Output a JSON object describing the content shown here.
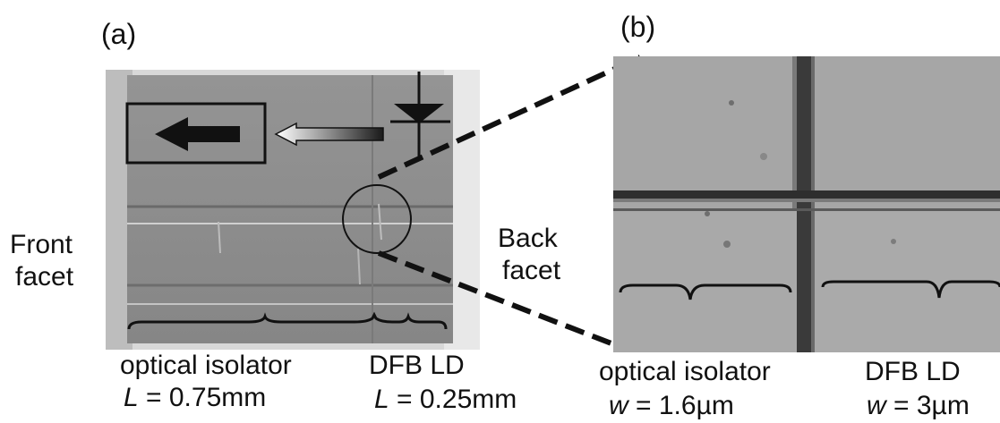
{
  "panel_a": {
    "tag": "(a)",
    "front_label_1": "Front",
    "front_label_2": "facet",
    "back_label_1": "Back",
    "back_label_2": "facet",
    "isolator_label": "optical isolator",
    "isolator_param_symbol": "L",
    "isolator_param_value": " = 0.75mm",
    "ld_label": "DFB LD",
    "ld_param_symbol": "L",
    "ld_param_value": " = 0.25mm"
  },
  "panel_b": {
    "tag": "(b)",
    "isolator_label": "optical isolator",
    "isolator_param_symbol": "w",
    "isolator_param_value": " = 1.6µm",
    "ld_label": "DFB LD",
    "ld_param_symbol": "w",
    "ld_param_value": " = 3µm"
  },
  "colors": {
    "chip_gray": "#8a8a8a",
    "zoom_gray": "#a2a2a2",
    "edge_white": "#e6e6e6",
    "line_black": "#111111"
  }
}
